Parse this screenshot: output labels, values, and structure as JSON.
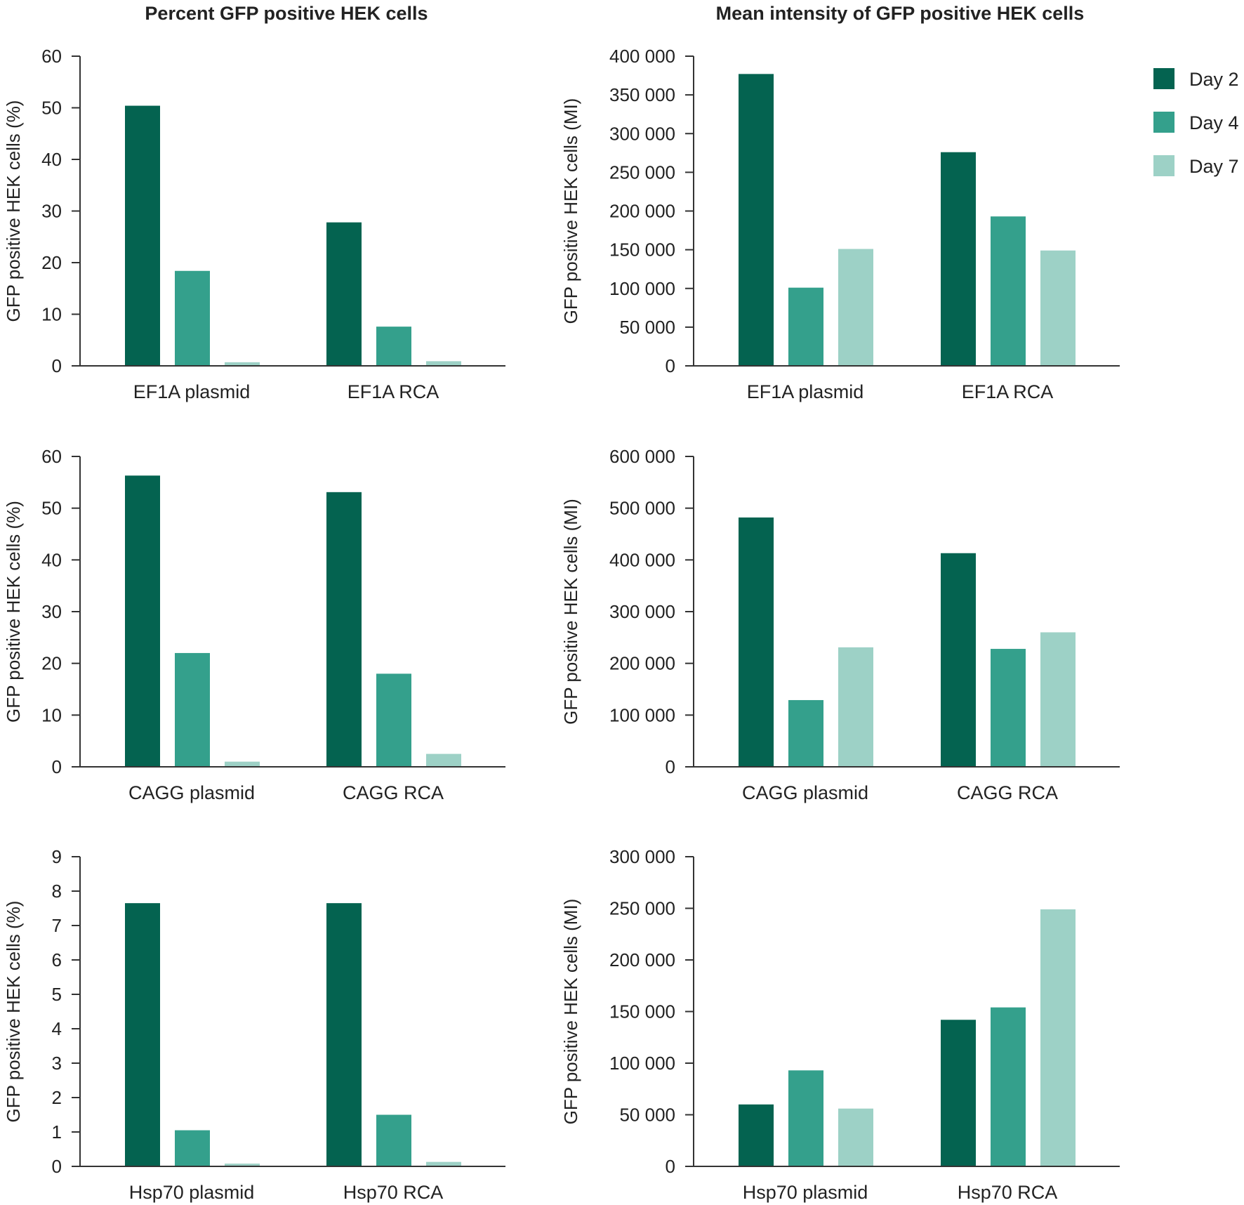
{
  "titles": {
    "left": "Percent GFP positive HEK cells",
    "right": "Mean intensity of GFP positive HEK cells"
  },
  "legend": [
    {
      "label": "Day 2",
      "color": "#046350"
    },
    {
      "label": "Day 4",
      "color": "#34a08c"
    },
    {
      "label": "Day 7",
      "color": "#9dd1c6"
    }
  ],
  "chart_data": [
    {
      "id": "ef1a-percent",
      "type": "bar",
      "column": "left",
      "ylabel": "GFP positive HEK cells (%)",
      "ylim": [
        0,
        60
      ],
      "yticks": [
        0,
        10,
        20,
        30,
        40,
        50,
        60
      ],
      "ytick_labels": [
        "0",
        "10",
        "20",
        "30",
        "40",
        "50",
        "60"
      ],
      "categories": [
        "EF1A plasmid",
        "EF1A RCA"
      ],
      "series": [
        {
          "name": "Day 2",
          "values": [
            50.4,
            27.8
          ]
        },
        {
          "name": "Day 4",
          "values": [
            18.4,
            7.6
          ]
        },
        {
          "name": "Day 7",
          "values": [
            0.7,
            0.9
          ]
        }
      ]
    },
    {
      "id": "ef1a-intensity",
      "type": "bar",
      "column": "right",
      "ylabel": "GFP positive HEK cells (MI)",
      "ylim": [
        0,
        400000
      ],
      "yticks": [
        0,
        50000,
        100000,
        150000,
        200000,
        250000,
        300000,
        350000,
        400000
      ],
      "ytick_labels": [
        "0",
        "50 000",
        "100 000",
        "150 000",
        "200 000",
        "250 000",
        "300 000",
        "350 000",
        "400 000"
      ],
      "categories": [
        "EF1A plasmid",
        "EF1A RCA"
      ],
      "series": [
        {
          "name": "Day 2",
          "values": [
            377000,
            276000
          ]
        },
        {
          "name": "Day 4",
          "values": [
            101000,
            193000
          ]
        },
        {
          "name": "Day 7",
          "values": [
            151000,
            149000
          ]
        }
      ]
    },
    {
      "id": "cagg-percent",
      "type": "bar",
      "column": "left",
      "ylabel": "GFP positive HEK cells (%)",
      "ylim": [
        0,
        60
      ],
      "yticks": [
        0,
        10,
        20,
        30,
        40,
        50,
        60
      ],
      "ytick_labels": [
        "0",
        "10",
        "20",
        "30",
        "40",
        "50",
        "60"
      ],
      "categories": [
        "CAGG plasmid",
        "CAGG RCA"
      ],
      "series": [
        {
          "name": "Day 2",
          "values": [
            56.3,
            53.1
          ]
        },
        {
          "name": "Day 4",
          "values": [
            22.0,
            18.0
          ]
        },
        {
          "name": "Day 7",
          "values": [
            1.0,
            2.5
          ]
        }
      ]
    },
    {
      "id": "cagg-intensity",
      "type": "bar",
      "column": "right",
      "ylabel": "GFP positive HEK cells (MI)",
      "ylim": [
        0,
        600000
      ],
      "yticks": [
        0,
        100000,
        200000,
        300000,
        400000,
        500000,
        600000
      ],
      "ytick_labels": [
        "0",
        "100 000",
        "200 000",
        "300 000",
        "400 000",
        "500 000",
        "600 000"
      ],
      "categories": [
        "CAGG plasmid",
        "CAGG RCA"
      ],
      "series": [
        {
          "name": "Day 2",
          "values": [
            482000,
            413000
          ]
        },
        {
          "name": "Day 4",
          "values": [
            129000,
            228000
          ]
        },
        {
          "name": "Day 7",
          "values": [
            231000,
            260000
          ]
        }
      ]
    },
    {
      "id": "hsp70-percent",
      "type": "bar",
      "column": "left",
      "ylabel": "GFP positive HEK cells (%)",
      "ylim": [
        0,
        9
      ],
      "yticks": [
        0,
        1,
        2,
        3,
        4,
        5,
        6,
        7,
        8,
        9
      ],
      "ytick_labels": [
        "0",
        "1",
        "2",
        "3",
        "4",
        "5",
        "6",
        "7",
        "8",
        "9"
      ],
      "categories": [
        "Hsp70 plasmid",
        "Hsp70 RCA"
      ],
      "series": [
        {
          "name": "Day 2",
          "values": [
            7.65,
            7.65
          ]
        },
        {
          "name": "Day 4",
          "values": [
            1.05,
            1.5
          ]
        },
        {
          "name": "Day 7",
          "values": [
            0.08,
            0.13
          ]
        }
      ]
    },
    {
      "id": "hsp70-intensity",
      "type": "bar",
      "column": "right",
      "ylabel": "GFP positive HEK cells (MI)",
      "ylim": [
        0,
        300000
      ],
      "yticks": [
        0,
        50000,
        100000,
        150000,
        200000,
        250000,
        300000
      ],
      "ytick_labels": [
        "0",
        "50 000",
        "100 000",
        "150 000",
        "200 000",
        "250 000",
        "300 000"
      ],
      "categories": [
        "Hsp70 plasmid",
        "Hsp70 RCA"
      ],
      "series": [
        {
          "name": "Day 2",
          "values": [
            60000,
            142000
          ]
        },
        {
          "name": "Day 4",
          "values": [
            93000,
            154000
          ]
        },
        {
          "name": "Day 7",
          "values": [
            56000,
            249000
          ]
        }
      ]
    }
  ]
}
